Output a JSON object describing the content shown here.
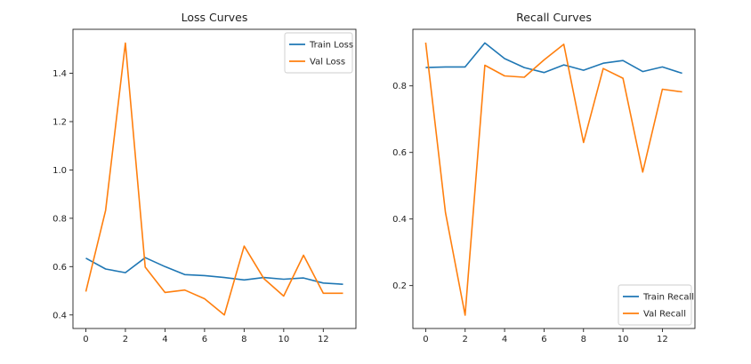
{
  "chart_data": [
    {
      "type": "line",
      "title": "Loss Curves",
      "xlabel": "",
      "ylabel": "",
      "xlim": [
        -0.65,
        13.65
      ],
      "ylim": [
        0.344,
        1.582
      ],
      "xticks": [
        0,
        2,
        4,
        6,
        8,
        10,
        12
      ],
      "yticks": [
        0.4,
        0.6,
        0.8,
        1.0,
        1.2,
        1.4
      ],
      "ytick_labels": [
        "0.4",
        "0.6",
        "0.8",
        "1.0",
        "1.2",
        "1.4"
      ],
      "grid": false,
      "legend_position": "top-right",
      "x": [
        0,
        1,
        2,
        3,
        4,
        5,
        6,
        7,
        8,
        9,
        10,
        11,
        12,
        13
      ],
      "series": [
        {
          "name": "Train Loss",
          "color": "#1f77b4",
          "values": [
            0.635,
            0.59,
            0.575,
            0.637,
            0.6,
            0.567,
            0.563,
            0.555,
            0.545,
            0.555,
            0.548,
            0.553,
            0.532,
            0.527
          ]
        },
        {
          "name": "Val Loss",
          "color": "#ff7f0e",
          "values": [
            0.497,
            0.833,
            1.525,
            0.598,
            0.493,
            0.503,
            0.467,
            0.4,
            0.685,
            0.55,
            0.478,
            0.647,
            0.49,
            0.49
          ]
        }
      ]
    },
    {
      "type": "line",
      "title": "Recall Curves",
      "xlabel": "",
      "ylabel": "",
      "xlim": [
        -0.65,
        13.65
      ],
      "ylim": [
        0.071,
        0.97
      ],
      "xticks": [
        0,
        2,
        4,
        6,
        8,
        10,
        12
      ],
      "yticks": [
        0.2,
        0.4,
        0.6,
        0.8
      ],
      "ytick_labels": [
        "0.2",
        "0.4",
        "0.6",
        "0.8"
      ],
      "grid": false,
      "legend_position": "lower-right",
      "x": [
        0,
        1,
        2,
        3,
        4,
        5,
        6,
        7,
        8,
        9,
        10,
        11,
        12,
        13
      ],
      "series": [
        {
          "name": "Train Recall",
          "color": "#1f77b4",
          "values": [
            0.855,
            0.857,
            0.857,
            0.929,
            0.882,
            0.855,
            0.84,
            0.863,
            0.847,
            0.868,
            0.876,
            0.843,
            0.857,
            0.838
          ]
        },
        {
          "name": "Val Recall",
          "color": "#ff7f0e",
          "values": [
            0.93,
            0.42,
            0.111,
            0.862,
            0.83,
            0.826,
            0.878,
            0.925,
            0.63,
            0.852,
            0.823,
            0.541,
            0.79,
            0.782
          ]
        }
      ]
    }
  ]
}
